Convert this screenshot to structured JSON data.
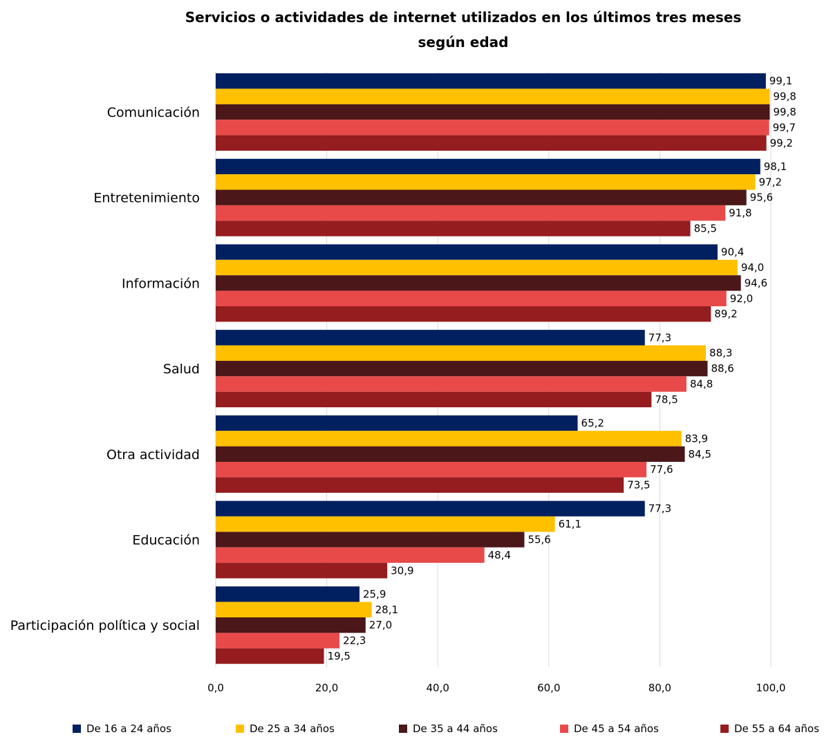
{
  "chart_data": {
    "type": "bar",
    "orientation": "horizontal",
    "title": "Servicios o actividades de internet utilizados en los últimos tres meses según edad",
    "title_lines": [
      "Servicios o actividades de internet utilizados en los últimos tres meses",
      "según edad"
    ],
    "xlabel": "",
    "ylabel": "",
    "xlim": [
      0,
      100
    ],
    "x_ticks": [
      "0,0",
      "20,0",
      "40,0",
      "60,0",
      "80,0",
      "100,0"
    ],
    "grid": "vertical",
    "legend_position": "bottom",
    "categories": [
      "Comunicación",
      "Entretenimiento",
      "Información",
      "Salud",
      "Otra actividad",
      "Educación",
      "Participación política y social"
    ],
    "series": [
      {
        "name": "De 16 a 24 años",
        "color": "#002060",
        "values": [
          99.1,
          98.1,
          90.4,
          77.3,
          65.2,
          77.3,
          25.9
        ],
        "labels": [
          "99,1",
          "98,1",
          "90,4",
          "77,3",
          "65,2",
          "77,3",
          "25,9"
        ]
      },
      {
        "name": "De 25 a 34 años",
        "color": "#FFC000",
        "values": [
          99.8,
          97.2,
          94.0,
          88.3,
          83.9,
          61.1,
          28.1
        ],
        "labels": [
          "99,8",
          "97,2",
          "94,0",
          "88,3",
          "83,9",
          "61,1",
          "28,1"
        ]
      },
      {
        "name": "De 35 a 44 años",
        "color": "#4B1719",
        "values": [
          99.8,
          95.6,
          94.6,
          88.6,
          84.5,
          55.6,
          27.0
        ],
        "labels": [
          "99,8",
          "95,6",
          "94,6",
          "88,6",
          "84,5",
          "55,6",
          "27,0"
        ]
      },
      {
        "name": "De 45 a 54 años",
        "color": "#E84A4A",
        "values": [
          99.7,
          91.8,
          92.0,
          84.8,
          77.6,
          48.4,
          22.3
        ],
        "labels": [
          "99,7",
          "91,8",
          "92,0",
          "84,8",
          "77,6",
          "48,4",
          "22,3"
        ]
      },
      {
        "name": "De 55 a 64 años",
        "color": "#951C1F",
        "values": [
          99.2,
          85.5,
          89.2,
          78.5,
          73.5,
          30.9,
          19.5
        ],
        "labels": [
          "99,2",
          "85,5",
          "89,2",
          "78,5",
          "73,5",
          "30,9",
          "19,5"
        ]
      }
    ]
  }
}
